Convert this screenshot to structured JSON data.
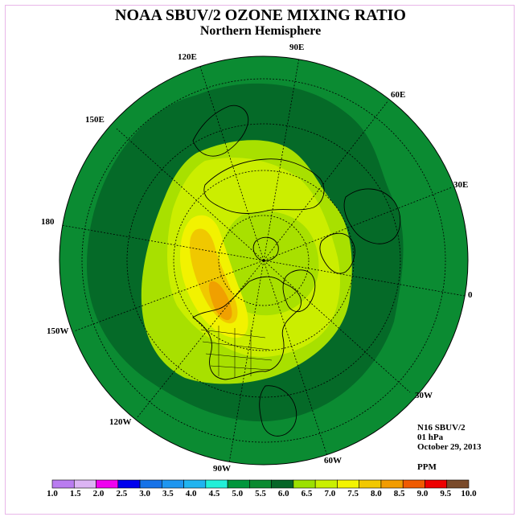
{
  "title": "NOAA SBUV/2 OZONE MIXING RATIO",
  "subtitle": "Northern Hemisphere",
  "longitude_labels": {
    "lon_90e": "90E",
    "lon_120e": "120E",
    "lon_60e": "60E",
    "lon_150e": "150E",
    "lon_30e": "30E",
    "lon_180": "180",
    "lon_0": "0",
    "lon_150w": "150W",
    "lon_30w": "30W",
    "lon_120w": "120W",
    "lon_60w": "60W",
    "lon_90w": "90W"
  },
  "info": {
    "instrument": "N16 SBUV/2",
    "level": "01 hPa",
    "date": "October 29, 2013",
    "unit": "PPM"
  },
  "colorbar": {
    "ticks": [
      "1.0",
      "1.5",
      "2.0",
      "2.5",
      "3.0",
      "3.5",
      "4.0",
      "4.5",
      "5.0",
      "5.5",
      "6.0",
      "6.5",
      "7.0",
      "7.5",
      "8.0",
      "8.5",
      "9.0",
      "9.5",
      "10.0"
    ],
    "colors": [
      "#b97cf0",
      "#dcb4f4",
      "#f000f0",
      "#0000ee",
      "#1672e8",
      "#1e96f0",
      "#20b4f0",
      "#22f0d8",
      "#00963c",
      "#0a8a30",
      "#066628",
      "#9ce000",
      "#caf000",
      "#f4f400",
      "#f2c800",
      "#f29c00",
      "#f05a00",
      "#ee0000",
      "#7a4a2a"
    ]
  },
  "map_colors": {
    "level_5_0_5_5": "#0b8b32",
    "level_5_5_6_0": "#056a28",
    "level_6_0_6_5": "#a8e000",
    "level_6_5_7_0": "#cbee00",
    "level_7_0_7_5": "#f2f200",
    "level_7_5_8_0": "#f0c800",
    "level_8_0_8_5": "#f0a000"
  }
}
